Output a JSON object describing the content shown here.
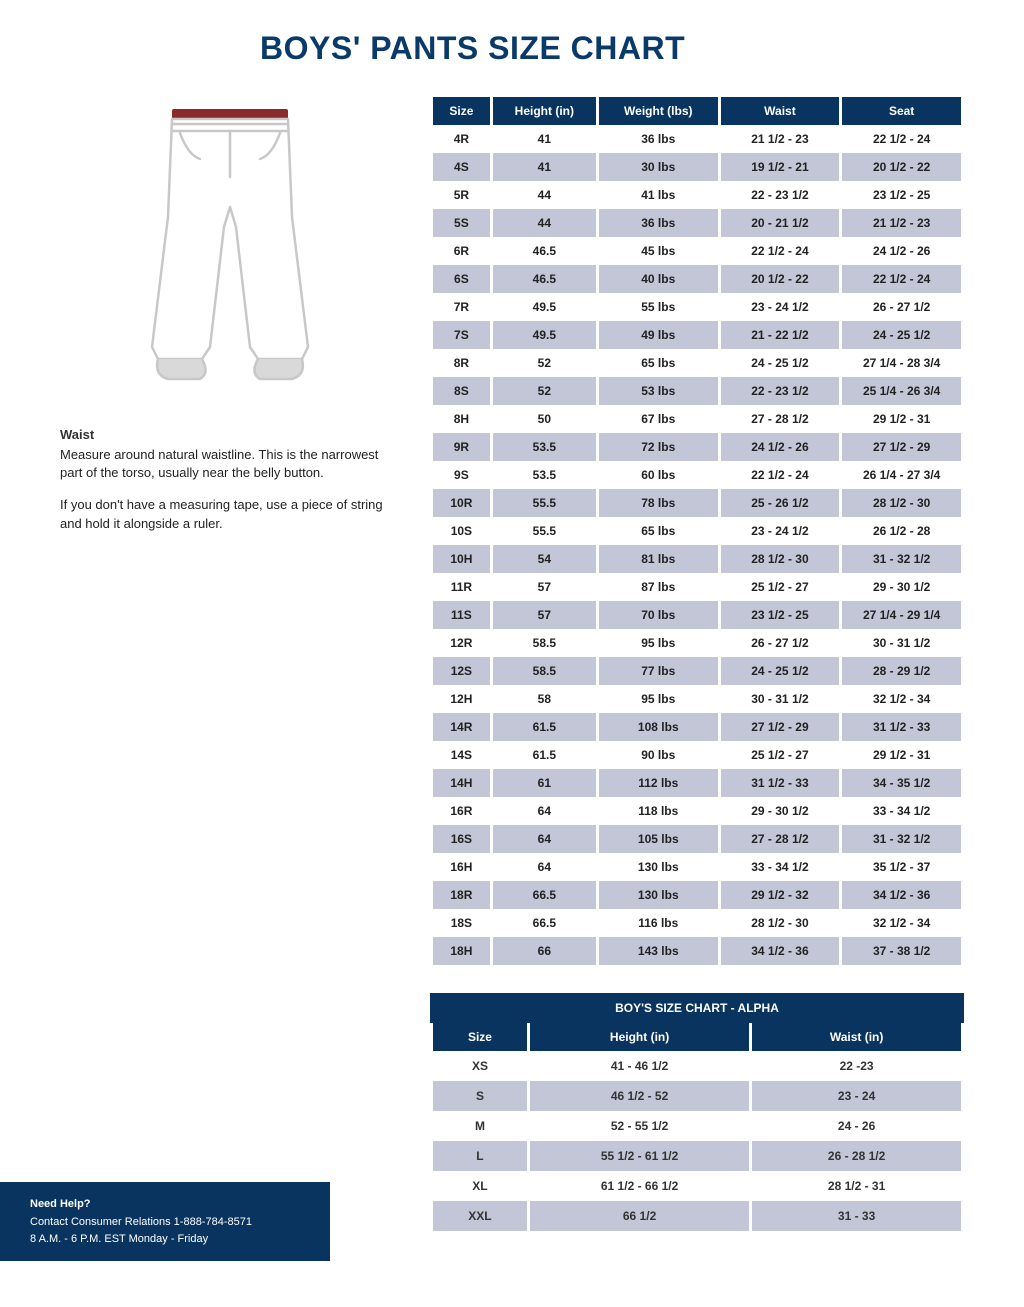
{
  "title": "BOYS' PANTS SIZE CHART",
  "instructions": {
    "heading": "Waist",
    "p1": "Measure around natural waistline. This is the narrowest part of the torso, usually near the belly button.",
    "p2": "If you don't have a measuring tape, use a piece of string and hold it alongside a ruler."
  },
  "colors": {
    "header_bg": "#0a3460",
    "header_text": "#ffffff",
    "alt_row_bg": "#c2c6d6",
    "title_color": "#093a6a",
    "waist_belt": "#8a2b2b"
  },
  "main_table": {
    "columns": [
      "Size",
      "Height (in)",
      "Weight (lbs)",
      "Waist",
      "Seat"
    ],
    "rows": [
      [
        "4R",
        "41",
        "36 lbs",
        "21 1/2 - 23",
        "22 1/2 - 24"
      ],
      [
        "4S",
        "41",
        "30 lbs",
        "19 1/2 - 21",
        "20 1/2 - 22"
      ],
      [
        "5R",
        "44",
        "41 lbs",
        "22 - 23 1/2",
        "23 1/2 - 25"
      ],
      [
        "5S",
        "44",
        "36 lbs",
        "20 - 21 1/2",
        "21 1/2 - 23"
      ],
      [
        "6R",
        "46.5",
        "45 lbs",
        "22 1/2 - 24",
        "24 1/2 - 26"
      ],
      [
        "6S",
        "46.5",
        "40 lbs",
        "20 1/2 - 22",
        "22 1/2 - 24"
      ],
      [
        "7R",
        "49.5",
        "55 lbs",
        "23 - 24 1/2",
        "26 - 27 1/2"
      ],
      [
        "7S",
        "49.5",
        "49 lbs",
        "21 - 22 1/2",
        "24 - 25 1/2"
      ],
      [
        "8R",
        "52",
        "65 lbs",
        "24 - 25 1/2",
        "27 1/4 - 28 3/4"
      ],
      [
        "8S",
        "52",
        "53 lbs",
        "22 - 23 1/2",
        "25 1/4 - 26 3/4"
      ],
      [
        "8H",
        "50",
        "67 lbs",
        "27 - 28 1/2",
        "29 1/2 - 31"
      ],
      [
        "9R",
        "53.5",
        "72 lbs",
        "24 1/2 - 26",
        "27 1/2 - 29"
      ],
      [
        "9S",
        "53.5",
        "60 lbs",
        "22 1/2 - 24",
        "26 1/4 - 27 3/4"
      ],
      [
        "10R",
        "55.5",
        "78 lbs",
        "25 - 26 1/2",
        "28 1/2 - 30"
      ],
      [
        "10S",
        "55.5",
        "65 lbs",
        "23 - 24 1/2",
        "26 1/2 - 28"
      ],
      [
        "10H",
        "54",
        "81 lbs",
        "28 1/2 - 30",
        "31 - 32 1/2"
      ],
      [
        "11R",
        "57",
        "87 lbs",
        "25 1/2 - 27",
        "29 - 30 1/2"
      ],
      [
        "11S",
        "57",
        "70 lbs",
        "23 1/2 - 25",
        "27 1/4 - 29 1/4"
      ],
      [
        "12R",
        "58.5",
        "95 lbs",
        "26 - 27 1/2",
        "30 - 31 1/2"
      ],
      [
        "12S",
        "58.5",
        "77 lbs",
        "24 - 25 1/2",
        "28 - 29 1/2"
      ],
      [
        "12H",
        "58",
        "95 lbs",
        "30 - 31 1/2",
        "32 1/2 - 34"
      ],
      [
        "14R",
        "61.5",
        "108 lbs",
        "27 1/2 - 29",
        "31 1/2 - 33"
      ],
      [
        "14S",
        "61.5",
        "90 lbs",
        "25 1/2 - 27",
        "29 1/2 - 31"
      ],
      [
        "14H",
        "61",
        "112 lbs",
        "31 1/2 - 33",
        "34 - 35 1/2"
      ],
      [
        "16R",
        "64",
        "118 lbs",
        "29 - 30 1/2",
        "33 - 34 1/2"
      ],
      [
        "16S",
        "64",
        "105 lbs",
        "27 - 28 1/2",
        "31 - 32 1/2"
      ],
      [
        "16H",
        "64",
        "130 lbs",
        "33 - 34 1/2",
        "35 1/2 - 37"
      ],
      [
        "18R",
        "66.5",
        "130 lbs",
        "29 1/2 - 32",
        "34 1/2 - 36"
      ],
      [
        "18S",
        "66.5",
        "116 lbs",
        "28 1/2 - 30",
        "32 1/2 - 34"
      ],
      [
        "18H",
        "66",
        "143 lbs",
        "34 1/2 - 36",
        "37 - 38 1/2"
      ]
    ]
  },
  "alpha_table": {
    "title": "BOY'S SIZE CHART -  ALPHA",
    "columns": [
      "Size",
      "Height (in)",
      "Waist (in)"
    ],
    "rows": [
      [
        "XS",
        "41 - 46 1/2",
        "22 -23"
      ],
      [
        "S",
        "46 1/2 - 52",
        "23 - 24"
      ],
      [
        "M",
        "52 - 55 1/2",
        "24 - 26"
      ],
      [
        "L",
        "55 1/2 - 61 1/2",
        "26 - 28 1/2"
      ],
      [
        "XL",
        "61 1/2 - 66 1/2",
        "28 1/2 - 31"
      ],
      [
        "XXL",
        "66 1/2",
        "31 - 33"
      ]
    ]
  },
  "help": {
    "heading": "Need Help?",
    "line1": "Contact Consumer Relations 1-888-784-8571",
    "line2": "8 A.M. - 6 P.M. EST  Monday - Friday"
  }
}
